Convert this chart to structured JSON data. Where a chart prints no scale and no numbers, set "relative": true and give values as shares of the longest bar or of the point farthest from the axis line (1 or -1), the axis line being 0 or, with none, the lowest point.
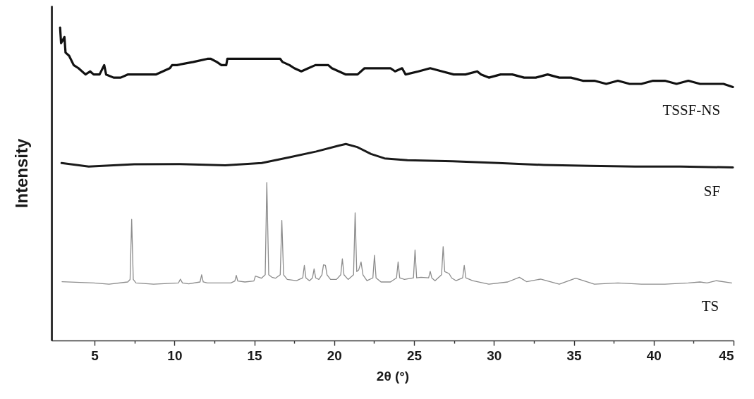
{
  "chart_data": {
    "type": "line",
    "relative": true,
    "xlabel": "2θ (°)",
    "ylabel": "Intensity",
    "xlim": [
      2.3,
      45
    ],
    "xticks": [
      5,
      {
        "value": 7.5,
        "label": null
      },
      10,
      {
        "value": 12.5,
        "label": null
      },
      15,
      {
        "value": 17.5,
        "label": null
      },
      20,
      {
        "value": 22.5,
        "label": null
      },
      25,
      {
        "value": 27.5,
        "label": null
      },
      30,
      {
        "value": 32.5,
        "label": null
      },
      35,
      {
        "value": 37.5,
        "label": null
      },
      40,
      {
        "value": 42.5,
        "label": null
      },
      45
    ],
    "series": [
      {
        "name": "TSSF-NS",
        "color": "#111111",
        "x": [
          2.84,
          2.9,
          3.11,
          3.18,
          3.4,
          3.69,
          3.99,
          4.43,
          4.72,
          4.94,
          5.31,
          5.6,
          5.72,
          6.19,
          6.63,
          7.07,
          7.51,
          8.39,
          8.83,
          9.27,
          9.71,
          9.85,
          10.15,
          11.18,
          12.06,
          12.28,
          12.65,
          12.94,
          13.24,
          13.31,
          13.82,
          14.26,
          15.3,
          15.88,
          16.47,
          16.62,
          16.76,
          17.2,
          17.5,
          17.94,
          18.38,
          18.82,
          19.41,
          19.63,
          19.85,
          20.29,
          20.73,
          21.17,
          21.46,
          21.9,
          23.52,
          23.81,
          24.25,
          24.47,
          25.28,
          26.01,
          26.75,
          27.48,
          28.22,
          28.95,
          29.2,
          29.68,
          30.42,
          31.15,
          31.89,
          32.62,
          33.36,
          34.09,
          34.82,
          35.56,
          36.29,
          37.03,
          37.76,
          38.49,
          39.23,
          39.96,
          40.7,
          41.43,
          42.17,
          42.9,
          43.63,
          44.37,
          44.96
        ],
        "values": [
          1.0,
          0.95,
          0.97,
          0.92,
          0.91,
          0.88,
          0.87,
          0.85,
          0.86,
          0.85,
          0.85,
          0.88,
          0.85,
          0.84,
          0.84,
          0.85,
          0.85,
          0.85,
          0.85,
          0.86,
          0.87,
          0.88,
          0.88,
          0.89,
          0.9,
          0.9,
          0.89,
          0.88,
          0.88,
          0.9,
          0.9,
          0.9,
          0.9,
          0.9,
          0.9,
          0.9,
          0.89,
          0.88,
          0.87,
          0.86,
          0.87,
          0.88,
          0.88,
          0.88,
          0.87,
          0.86,
          0.85,
          0.85,
          0.85,
          0.87,
          0.87,
          0.86,
          0.87,
          0.85,
          0.86,
          0.87,
          0.86,
          0.85,
          0.85,
          0.86,
          0.85,
          0.84,
          0.85,
          0.85,
          0.84,
          0.84,
          0.85,
          0.84,
          0.84,
          0.83,
          0.83,
          0.82,
          0.83,
          0.82,
          0.82,
          0.83,
          0.83,
          0.82,
          0.83,
          0.82,
          0.82,
          0.82,
          0.81
        ]
      },
      {
        "name": "SF",
        "color": "#1a1a1a",
        "x": [
          2.93,
          4.63,
          7.48,
          10.33,
          13.18,
          15.46,
          17.17,
          18.88,
          20.3,
          20.73,
          21.44,
          22.3,
          23.15,
          24.58,
          27.42,
          30.28,
          33.13,
          35.98,
          38.83,
          41.68,
          44.96
        ],
        "values": [
          0.567,
          0.556,
          0.563,
          0.564,
          0.56,
          0.567,
          0.585,
          0.604,
          0.623,
          0.628,
          0.618,
          0.596,
          0.582,
          0.576,
          0.573,
          0.567,
          0.561,
          0.558,
          0.556,
          0.556,
          0.553
        ]
      },
      {
        "name": "TS",
        "color": "#8c8c8c",
        "x": [
          2.96,
          4.94,
          5.9,
          7.07,
          7.22,
          7.32,
          7.42,
          7.59,
          8.69,
          10.25,
          10.37,
          10.5,
          10.89,
          11.6,
          11.7,
          11.8,
          12.06,
          13.53,
          13.78,
          13.87,
          13.96,
          14.41,
          14.97,
          15.07,
          15.44,
          15.68,
          15.78,
          15.9,
          16.1,
          16.32,
          16.62,
          16.72,
          16.83,
          17.06,
          17.64,
          18.03,
          18.13,
          18.23,
          18.45,
          18.64,
          18.74,
          18.84,
          19.04,
          19.23,
          19.33,
          19.45,
          19.55,
          19.77,
          20.14,
          20.41,
          20.51,
          20.61,
          20.87,
          21.21,
          21.31,
          21.41,
          21.53,
          21.68,
          21.8,
          22.05,
          22.42,
          22.52,
          22.62,
          22.93,
          23.52,
          23.9,
          24.0,
          24.1,
          24.4,
          24.96,
          25.06,
          25.16,
          25.43,
          25.91,
          26.01,
          26.11,
          26.31,
          26.72,
          26.82,
          26.92,
          27.19,
          27.35,
          27.63,
          28.04,
          28.14,
          28.24,
          28.66,
          29.68,
          30.86,
          31.59,
          32.04,
          32.92,
          34.09,
          35.12,
          36.29,
          37.76,
          39.23,
          40.7,
          42.17,
          42.9,
          43.34,
          43.93,
          44.88
        ],
        "values": [
          0.188,
          0.184,
          0.18,
          0.187,
          0.195,
          0.387,
          0.195,
          0.184,
          0.18,
          0.184,
          0.196,
          0.184,
          0.181,
          0.187,
          0.21,
          0.187,
          0.184,
          0.184,
          0.19,
          0.208,
          0.19,
          0.187,
          0.19,
          0.206,
          0.199,
          0.21,
          0.505,
          0.21,
          0.202,
          0.199,
          0.21,
          0.384,
          0.21,
          0.195,
          0.191,
          0.2,
          0.24,
          0.2,
          0.191,
          0.2,
          0.229,
          0.2,
          0.195,
          0.21,
          0.242,
          0.24,
          0.21,
          0.195,
          0.195,
          0.21,
          0.261,
          0.21,
          0.195,
          0.21,
          0.408,
          0.22,
          0.225,
          0.251,
          0.21,
          0.191,
          0.2,
          0.272,
          0.2,
          0.187,
          0.187,
          0.2,
          0.251,
          0.2,
          0.195,
          0.2,
          0.289,
          0.2,
          0.202,
          0.2,
          0.221,
          0.2,
          0.191,
          0.21,
          0.3,
          0.22,
          0.214,
          0.2,
          0.191,
          0.2,
          0.24,
          0.2,
          0.191,
          0.18,
          0.187,
          0.202,
          0.188,
          0.196,
          0.18,
          0.199,
          0.18,
          0.184,
          0.18,
          0.18,
          0.184,
          0.187,
          0.184,
          0.191,
          0.184
        ]
      }
    ]
  }
}
